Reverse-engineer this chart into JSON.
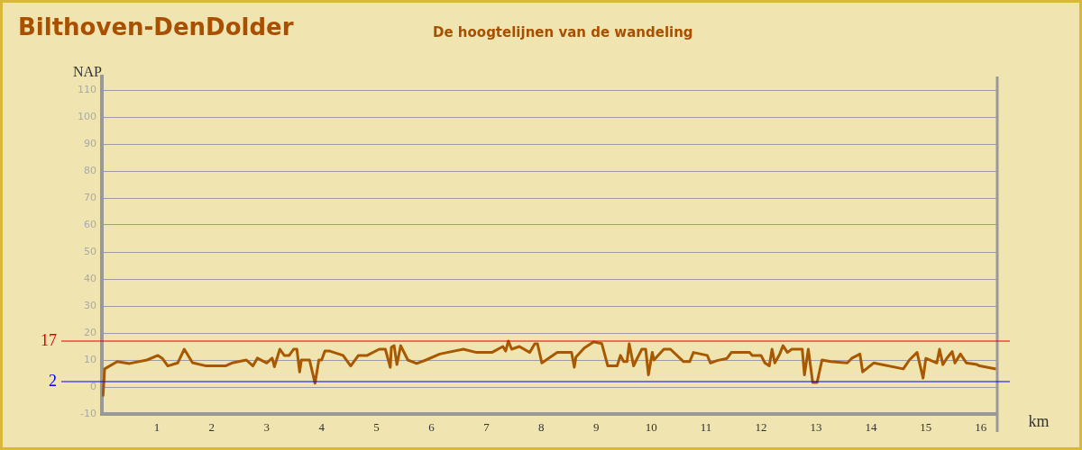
{
  "chart_data": {
    "type": "line",
    "title": "Bilthoven-DenDolder",
    "subtitle": "De hoogtelijnen van de wandeling",
    "xlabel": "km",
    "ylabel": "NAP",
    "x": [
      0.02,
      0.05,
      0.28,
      0.5,
      0.82,
      1.02,
      1.1,
      1.2,
      1.38,
      1.5,
      1.65,
      1.9,
      2.25,
      2.37,
      2.63,
      2.75,
      2.83,
      3.0,
      3.1,
      3.14,
      3.24,
      3.32,
      3.41,
      3.49,
      3.55,
      3.6,
      3.63,
      3.78,
      3.88,
      3.95,
      4.0,
      4.06,
      4.15,
      4.39,
      4.53,
      4.67,
      4.83,
      5.05,
      5.16,
      5.25,
      5.27,
      5.32,
      5.37,
      5.44,
      5.57,
      5.73,
      5.9,
      6.15,
      6.58,
      6.82,
      7.1,
      7.3,
      7.35,
      7.4,
      7.46,
      7.6,
      7.79,
      7.88,
      7.93,
      8.01,
      8.29,
      8.55,
      8.6,
      8.63,
      8.78,
      8.95,
      9.1,
      9.21,
      9.38,
      9.44,
      9.5,
      9.56,
      9.6,
      9.68,
      9.73,
      9.83,
      9.9,
      9.95,
      10.02,
      10.05,
      10.23,
      10.35,
      10.59,
      10.7,
      10.77,
      11.02,
      11.08,
      11.2,
      11.38,
      11.46,
      11.79,
      11.84,
      12.0,
      12.07,
      12.15,
      12.2,
      12.25,
      12.34,
      12.4,
      12.48,
      12.56,
      12.75,
      12.79,
      12.86,
      12.94,
      13.02,
      13.11,
      13.27,
      13.57,
      13.65,
      13.8,
      13.85,
      14.05,
      14.59,
      14.7,
      14.84,
      14.95,
      15.0,
      15.2,
      15.25,
      15.31,
      15.38,
      15.48,
      15.53,
      15.63,
      15.74,
      15.93,
      15.98,
      16.28
    ],
    "values": [
      -3.5,
      6.7,
      9.4,
      8.7,
      10,
      11.7,
      10.6,
      7.8,
      8.9,
      14,
      9,
      7.8,
      7.8,
      8.9,
      10,
      7.8,
      10.7,
      8.9,
      10.7,
      7.5,
      14,
      11.7,
      11.7,
      14,
      14,
      5.6,
      10,
      10,
      1.4,
      10,
      10,
      13.3,
      13.3,
      11.7,
      7.8,
      11.7,
      11.7,
      14,
      14,
      7.3,
      14.7,
      15.3,
      8.3,
      15.3,
      10,
      8.7,
      10,
      12.2,
      14,
      12.8,
      12.8,
      15,
      13.3,
      17,
      14,
      15,
      12.8,
      16,
      16,
      8.9,
      12.8,
      12.8,
      7.3,
      11.1,
      14.4,
      16.7,
      16.1,
      7.8,
      7.8,
      11.7,
      9.4,
      9.4,
      16,
      7.8,
      10,
      14,
      14,
      4.5,
      12.8,
      10,
      14,
      14,
      9.4,
      9.4,
      12.8,
      11.7,
      8.9,
      9.8,
      10.6,
      12.8,
      12.8,
      11.7,
      11.7,
      8.9,
      7.8,
      14,
      8.9,
      12.2,
      15.3,
      12.8,
      14,
      14,
      4.5,
      14,
      1.7,
      1.7,
      10,
      9.4,
      8.9,
      10.6,
      12.2,
      5.6,
      8.9,
      6.7,
      10,
      12.8,
      3.3,
      10.6,
      8.9,
      14,
      8.3,
      10.6,
      13.1,
      8.9,
      12.2,
      8.9,
      8.3,
      7.8,
      6.7
    ],
    "color": "#a85800",
    "marker": "none",
    "xlim": [
      0,
      16.3
    ],
    "ylim": [
      -10,
      115
    ],
    "xticks": [
      1,
      2,
      3,
      4,
      5,
      6,
      7,
      8,
      9,
      10,
      11,
      12,
      13,
      14,
      15,
      16
    ],
    "yticks": [
      -10,
      0,
      10,
      20,
      30,
      40,
      50,
      60,
      70,
      80,
      90,
      100,
      110
    ],
    "grid": "y",
    "ref_lines": [
      {
        "axis": "y",
        "value": 17,
        "label": "17",
        "color": "#e00000"
      },
      {
        "axis": "y",
        "value": 2,
        "label": "2",
        "color": "#0000ff"
      }
    ]
  }
}
